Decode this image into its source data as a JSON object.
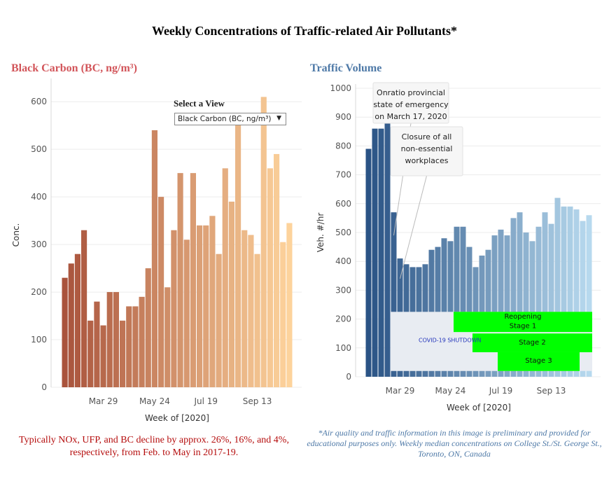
{
  "page": {
    "title": "Weekly Concentrations of Traffic-related Air Pollutants*",
    "left_note": "Typically NOx, UFP, and BC decline by approx. 26%, 16%, and 4%, respectively, from Feb. to May in 2017-19.",
    "right_note": "*Air quality and traffic information in this image is preliminary and provided for educational purposes only. Weekly median concentrations on College St./St. George St., Toronto, ON, Canada"
  },
  "view_selector": {
    "label": "Select a View",
    "selected": "Black Carbon (BC, ng/m³)"
  },
  "chart_data": [
    {
      "type": "bar",
      "title": "Black Carbon (BC, ng/m³)",
      "xlabel": "Week of [2020]",
      "ylabel": "Conc.",
      "ylim": [
        0,
        640
      ],
      "yticks": [
        0,
        100,
        200,
        300,
        400,
        500,
        600
      ],
      "xtick_labels": [
        "Mar 29",
        "May 24",
        "Jul 19",
        "Sep 13"
      ],
      "xtick_positions": [
        6,
        14,
        22,
        30
      ],
      "color_start": "#a9533c",
      "color_end": "#fdd39c",
      "grid": true,
      "values": [
        230,
        260,
        280,
        330,
        140,
        180,
        130,
        200,
        200,
        140,
        170,
        170,
        190,
        250,
        540,
        400,
        210,
        330,
        450,
        310,
        450,
        340,
        340,
        360,
        280,
        460,
        390,
        560,
        330,
        320,
        280,
        610,
        460,
        490,
        305,
        345
      ]
    },
    {
      "type": "bar",
      "title": "Traffic Volume",
      "xlabel": "Week of [2020]",
      "ylabel": "Veh. #/hr",
      "ylim": [
        0,
        1000
      ],
      "yticks": [
        0,
        100,
        200,
        300,
        400,
        500,
        600,
        700,
        800,
        900,
        1000
      ],
      "xtick_labels": [
        "Mar 29",
        "May 24",
        "Jul 19",
        "Sep 13"
      ],
      "xtick_positions": [
        5,
        13,
        21,
        29
      ],
      "color_start": "#2a5385",
      "color_end": "#b7d9ee",
      "grid": true,
      "values": [
        790,
        860,
        860,
        970,
        570,
        410,
        390,
        380,
        380,
        390,
        440,
        450,
        480,
        470,
        520,
        520,
        450,
        380,
        420,
        440,
        490,
        510,
        490,
        550,
        570,
        500,
        470,
        520,
        570,
        530,
        620,
        590,
        590,
        580,
        540,
        560
      ],
      "annotations": [
        {
          "text": [
            "Onratio provincial",
            "state of emergency",
            "on March 17, 2020"
          ],
          "x_index": 4,
          "y": 490
        },
        {
          "text": [
            "Closure of all",
            "non-essential",
            "workplaces"
          ],
          "x_index": 5,
          "y": 340
        }
      ],
      "phase_shading": [
        {
          "label": "COVID-19 SHUTDOWN",
          "start_index": 4,
          "end_index": 35,
          "y_range": [
            20,
            225
          ],
          "color": "#e8ecf2"
        },
        {
          "label": [
            "Reopening",
            "Stage 1"
          ],
          "start_index": 14,
          "end_index": 35,
          "y_range": [
            155,
            225
          ],
          "color": "#00ff00"
        },
        {
          "label": [
            "Stage 2"
          ],
          "start_index": 17,
          "end_index": 35,
          "y_range": [
            85,
            150
          ],
          "color": "#00ff00"
        },
        {
          "label": [
            "Stage 3"
          ],
          "start_index": 21,
          "end_index": 33,
          "y_range": [
            20,
            85
          ],
          "color": "#00ff00"
        }
      ]
    }
  ]
}
